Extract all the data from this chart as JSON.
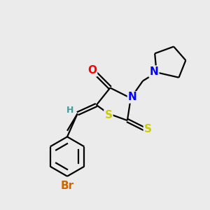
{
  "bg_color": "#ebebeb",
  "bond_color": "#000000",
  "atom_colors": {
    "O": "#ff0000",
    "N": "#0000ff",
    "S": "#cccc00",
    "Br": "#cc6600",
    "H": "#4a9999",
    "C": "#000000"
  },
  "font_size_atoms": 11,
  "font_size_small": 9,
  "lw": 1.6,
  "xlim": [
    0,
    10
  ],
  "ylim": [
    0,
    12
  ]
}
